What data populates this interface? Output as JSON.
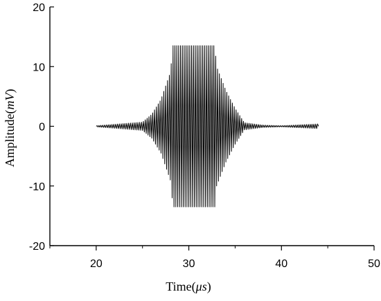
{
  "chart_data": {
    "type": "line",
    "title": "",
    "xlabel": "Time(μs)",
    "ylabel": "Amplitude(mV)",
    "xlabel_parts": {
      "prefix": "Time(",
      "unit": "μs",
      "suffix": ")"
    },
    "ylabel_parts": {
      "prefix": "Amplitude(",
      "unit": "mV",
      "suffix": ")"
    },
    "xlim": [
      15,
      50
    ],
    "ylim": [
      -20,
      20
    ],
    "x_ticks": [
      "20",
      "30",
      "40",
      "50"
    ],
    "y_ticks": [
      "20",
      "10",
      "0",
      "-10",
      "-20"
    ],
    "grid": false,
    "legend": "none",
    "line_color": "#000000",
    "series": [
      {
        "signal_description": "ultrasonic tone burst: near-zero baseline from 20 to 44 us, growing oscillation from ~25 us, clipped at about +13.5/-13.7 mV between ~28.3 and ~32.8 us, decaying by ~36 us",
        "x": [
          20,
          25,
          26,
          27,
          28,
          28.3,
          30,
          32.8,
          33,
          34,
          35,
          36,
          38,
          40,
          44
        ],
        "envelope_y": [
          0.1,
          0.7,
          2.0,
          4.5,
          9.0,
          13.5,
          13.5,
          13.5,
          10.0,
          6.0,
          3.0,
          0.6,
          0.2,
          0.1,
          0.4
        ],
        "peak_y": 13.5,
        "trough_y": -13.7
      }
    ]
  }
}
